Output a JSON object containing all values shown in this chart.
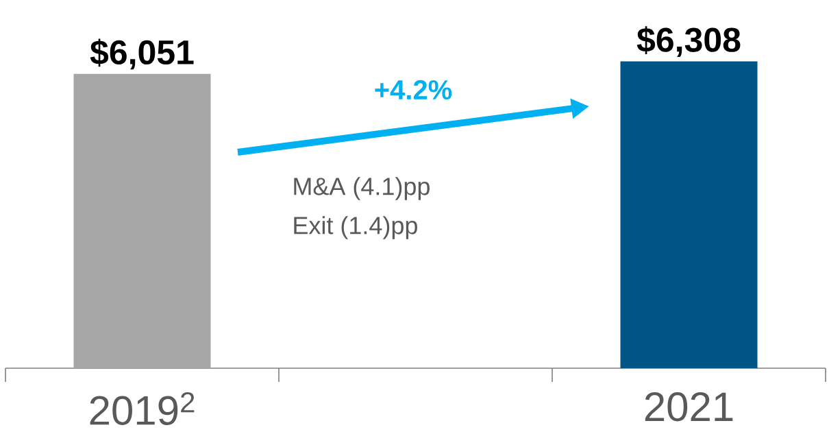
{
  "chart_data": {
    "type": "bar",
    "categories": [
      "2019$^{2}$",
      null,
      "2021"
    ],
    "values": [
      6051,
      null,
      6308
    ],
    "value_labels": [
      "$6,051",
      null,
      "$6,308"
    ],
    "colors": [
      "#a6a6a6",
      null,
      "#005587"
    ],
    "annotations": [
      "+4.2%",
      "M&A (4.1)pp",
      "Exit (1.4)pp"
    ]
  }
}
